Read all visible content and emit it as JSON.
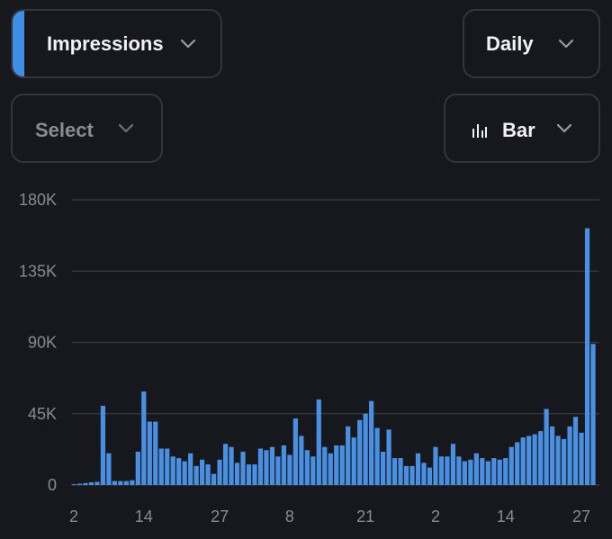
{
  "controls": {
    "metric": {
      "label": "Impressions",
      "accent_color": "#3d8fe6"
    },
    "period": {
      "label": "Daily"
    },
    "compare": {
      "label": "Select"
    },
    "chart_type": {
      "label": "Bar",
      "icon": "bar-chart-icon"
    }
  },
  "colors": {
    "background": "#17181d",
    "bar": "#4a90e2",
    "grid": "#3a3b41",
    "tick_text": "#8a8b91"
  },
  "chart_data": {
    "type": "bar",
    "title": "",
    "xlabel": "",
    "ylabel": "",
    "ylim": [
      0,
      180000
    ],
    "y_ticks": [
      0,
      45000,
      90000,
      135000,
      180000
    ],
    "y_tick_labels": [
      "0",
      "45K",
      "90K",
      "135K",
      "180K"
    ],
    "grid": true,
    "x_ticks": [
      {
        "index": 0,
        "label": "2"
      },
      {
        "index": 12,
        "label": "14"
      },
      {
        "index": 25,
        "label": "27"
      },
      {
        "index": 37,
        "label": "8"
      },
      {
        "index": 50,
        "label": "21"
      },
      {
        "index": 62,
        "label": "2"
      },
      {
        "index": 74,
        "label": "14"
      },
      {
        "index": 87,
        "label": "27"
      }
    ],
    "values": [
      500,
      800,
      1200,
      1700,
      2000,
      50000,
      20000,
      2500,
      2500,
      2500,
      3000,
      21000,
      59000,
      40000,
      40000,
      23000,
      23000,
      18000,
      17000,
      15000,
      20000,
      12000,
      16000,
      13000,
      7000,
      16000,
      26000,
      24000,
      14000,
      21000,
      13000,
      13000,
      23000,
      22000,
      24000,
      18000,
      25000,
      19000,
      42000,
      31000,
      22000,
      18000,
      54000,
      24000,
      20000,
      25000,
      25000,
      37000,
      30000,
      41000,
      45000,
      53000,
      36000,
      21000,
      35000,
      17000,
      17000,
      12000,
      12000,
      20000,
      14000,
      11000,
      24000,
      18000,
      18000,
      26000,
      18000,
      15000,
      16000,
      20000,
      17000,
      15000,
      17000,
      16000,
      17000,
      24000,
      27000,
      30000,
      31000,
      32000,
      34000,
      48000,
      37000,
      31000,
      29000,
      37000,
      43000,
      33000,
      162000,
      89000
    ]
  }
}
